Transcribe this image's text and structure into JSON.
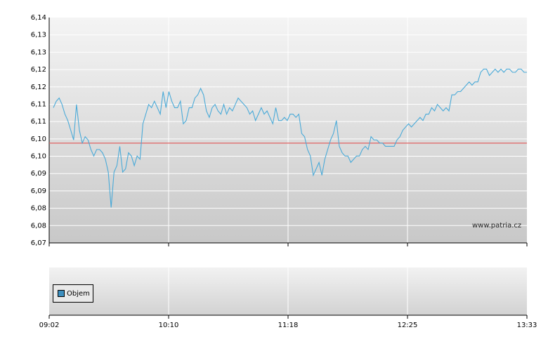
{
  "chart_data": [
    {
      "type": "line",
      "title": "",
      "xlabel": "",
      "ylabel": "",
      "ylim": [
        6.07,
        6.14
      ],
      "y_tick_labels": [
        "6,14",
        "6,13",
        "6,13",
        "6,12",
        "6,12",
        "6,11",
        "6,11",
        "6,10",
        "6,10",
        "6,09",
        "6,09",
        "6,08",
        "6,08",
        "6,07"
      ],
      "x_tick_labels": [
        "09:02",
        "10:10",
        "11:18",
        "12:25",
        "13:33"
      ],
      "reference_line": {
        "value": 6.101,
        "color": "#e06060"
      },
      "line_color": "#4aaad8",
      "grid": true,
      "series": [
        {
          "values": [
            [
              0,
              6.112
            ],
            [
              1,
              6.114
            ],
            [
              2,
              6.115
            ],
            [
              3,
              6.113
            ],
            [
              4,
              6.11
            ],
            [
              5,
              6.108
            ],
            [
              6,
              6.105
            ],
            [
              7,
              6.102
            ],
            [
              8,
              6.113
            ],
            [
              9,
              6.105
            ],
            [
              10,
              6.101
            ],
            [
              11,
              6.103
            ],
            [
              12,
              6.102
            ],
            [
              13,
              6.099
            ],
            [
              14,
              6.097
            ],
            [
              15,
              6.099
            ],
            [
              16,
              6.099
            ],
            [
              17,
              6.098
            ],
            [
              18,
              6.096
            ],
            [
              19,
              6.092
            ],
            [
              20,
              6.081
            ],
            [
              21,
              6.092
            ],
            [
              22,
              6.094
            ],
            [
              23,
              6.1
            ],
            [
              24,
              6.092
            ],
            [
              25,
              6.093
            ],
            [
              26,
              6.098
            ],
            [
              27,
              6.097
            ],
            [
              28,
              6.094
            ],
            [
              29,
              6.097
            ],
            [
              30,
              6.096
            ],
            [
              31,
              6.107
            ],
            [
              32,
              6.11
            ],
            [
              33,
              6.113
            ],
            [
              34,
              6.112
            ],
            [
              35,
              6.114
            ],
            [
              36,
              6.112
            ],
            [
              37,
              6.11
            ],
            [
              38,
              6.117
            ],
            [
              39,
              6.112
            ],
            [
              40,
              6.117
            ],
            [
              41,
              6.114
            ],
            [
              42,
              6.112
            ],
            [
              43,
              6.112
            ],
            [
              44,
              6.114
            ],
            [
              45,
              6.107
            ],
            [
              46,
              6.108
            ],
            [
              47,
              6.112
            ],
            [
              48,
              6.112
            ],
            [
              49,
              6.115
            ],
            [
              50,
              6.116
            ],
            [
              51,
              6.118
            ],
            [
              52,
              6.116
            ],
            [
              53,
              6.111
            ],
            [
              54,
              6.109
            ],
            [
              55,
              6.112
            ],
            [
              56,
              6.113
            ],
            [
              57,
              6.111
            ],
            [
              58,
              6.11
            ],
            [
              59,
              6.113
            ],
            [
              60,
              6.11
            ],
            [
              61,
              6.112
            ],
            [
              62,
              6.111
            ],
            [
              63,
              6.113
            ],
            [
              64,
              6.115
            ],
            [
              65,
              6.114
            ],
            [
              66,
              6.113
            ],
            [
              67,
              6.112
            ],
            [
              68,
              6.11
            ],
            [
              69,
              6.111
            ],
            [
              70,
              6.108
            ],
            [
              71,
              6.11
            ],
            [
              72,
              6.112
            ],
            [
              73,
              6.11
            ],
            [
              74,
              6.111
            ],
            [
              75,
              6.109
            ],
            [
              76,
              6.107
            ],
            [
              77,
              6.112
            ],
            [
              78,
              6.108
            ],
            [
              79,
              6.108
            ],
            [
              80,
              6.109
            ],
            [
              81,
              6.108
            ],
            [
              82,
              6.11
            ],
            [
              83,
              6.11
            ],
            [
              84,
              6.109
            ],
            [
              85,
              6.11
            ],
            [
              86,
              6.104
            ],
            [
              87,
              6.103
            ],
            [
              88,
              6.099
            ],
            [
              89,
              6.097
            ],
            [
              90,
              6.091
            ],
            [
              91,
              6.093
            ],
            [
              92,
              6.095
            ],
            [
              93,
              6.091
            ],
            [
              94,
              6.096
            ],
            [
              95,
              6.099
            ],
            [
              96,
              6.102
            ],
            [
              97,
              6.104
            ],
            [
              98,
              6.108
            ],
            [
              99,
              6.1
            ],
            [
              100,
              6.098
            ],
            [
              101,
              6.097
            ],
            [
              102,
              6.097
            ],
            [
              103,
              6.095
            ],
            [
              104,
              6.096
            ],
            [
              105,
              6.097
            ],
            [
              106,
              6.097
            ],
            [
              107,
              6.099
            ],
            [
              108,
              6.1
            ],
            [
              109,
              6.099
            ],
            [
              110,
              6.103
            ],
            [
              111,
              6.102
            ],
            [
              112,
              6.102
            ],
            [
              113,
              6.101
            ],
            [
              114,
              6.101
            ],
            [
              115,
              6.1
            ],
            [
              116,
              6.1
            ],
            [
              117,
              6.1
            ],
            [
              118,
              6.1
            ],
            [
              119,
              6.102
            ],
            [
              120,
              6.103
            ],
            [
              121,
              6.105
            ],
            [
              122,
              6.106
            ],
            [
              123,
              6.107
            ],
            [
              124,
              6.106
            ],
            [
              125,
              6.107
            ],
            [
              126,
              6.108
            ],
            [
              127,
              6.109
            ],
            [
              128,
              6.108
            ],
            [
              129,
              6.11
            ],
            [
              130,
              6.11
            ],
            [
              131,
              6.112
            ],
            [
              132,
              6.111
            ],
            [
              133,
              6.113
            ],
            [
              134,
              6.112
            ],
            [
              135,
              6.111
            ],
            [
              136,
              6.112
            ],
            [
              137,
              6.111
            ],
            [
              138,
              6.116
            ],
            [
              139,
              6.116
            ],
            [
              140,
              6.117
            ],
            [
              141,
              6.117
            ],
            [
              142,
              6.118
            ],
            [
              143,
              6.119
            ],
            [
              144,
              6.12
            ],
            [
              145,
              6.119
            ],
            [
              146,
              6.12
            ],
            [
              147,
              6.12
            ],
            [
              148,
              6.123
            ],
            [
              149,
              6.124
            ],
            [
              150,
              6.124
            ],
            [
              151,
              6.122
            ],
            [
              152,
              6.123
            ],
            [
              153,
              6.124
            ],
            [
              154,
              6.123
            ],
            [
              155,
              6.124
            ],
            [
              156,
              6.123
            ],
            [
              157,
              6.124
            ],
            [
              158,
              6.124
            ],
            [
              159,
              6.123
            ],
            [
              160,
              6.123
            ],
            [
              161,
              6.124
            ],
            [
              162,
              6.124
            ],
            [
              163,
              6.123
            ],
            [
              164,
              6.123
            ]
          ]
        }
      ]
    },
    {
      "type": "bar",
      "title": "",
      "legend": {
        "position": "bottom-left",
        "entries": [
          "Objem"
        ]
      },
      "series": [
        {
          "name": "Objem",
          "color": "#3d8fbf",
          "values": []
        }
      ]
    }
  ],
  "watermark": "www.patria.cz"
}
